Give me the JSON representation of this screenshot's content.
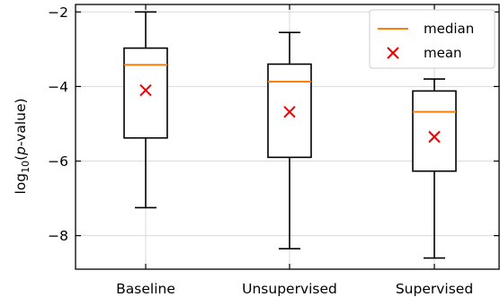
{
  "chart_data": {
    "type": "box",
    "categories": [
      "Baseline",
      "Unsupervised",
      "Supervised"
    ],
    "ylabel_prefix": "log",
    "ylabel_subscript": "10",
    "ylabel_open": "(",
    "ylabel_italic": "p",
    "ylabel_rest": "-value)",
    "ylim": [
      -8.9,
      -1.8
    ],
    "yticks": [
      -2,
      -4,
      -6,
      -8
    ],
    "ytick_labels": [
      "−2",
      "−4",
      "−6",
      "−8"
    ],
    "grid": true,
    "legend_position": "top-right",
    "legend": {
      "median": "median",
      "mean": "mean"
    },
    "colors": {
      "median": "#ff7f0e",
      "mean": "#ee0000",
      "box": "#000000",
      "grid": "#d9d9d9"
    },
    "boxes": [
      {
        "category": "Baseline",
        "whisker_low": -7.25,
        "q1": -5.38,
        "median": -3.42,
        "q3": -2.97,
        "whisker_high": -2.0,
        "mean": -4.1
      },
      {
        "category": "Unsupervised",
        "whisker_low": -8.35,
        "q1": -5.9,
        "median": -3.87,
        "q3": -3.4,
        "whisker_high": -2.55,
        "mean": -4.68
      },
      {
        "category": "Supervised",
        "whisker_low": -8.6,
        "q1": -6.27,
        "median": -4.68,
        "q3": -4.12,
        "whisker_high": -3.8,
        "mean": -5.35
      }
    ]
  }
}
